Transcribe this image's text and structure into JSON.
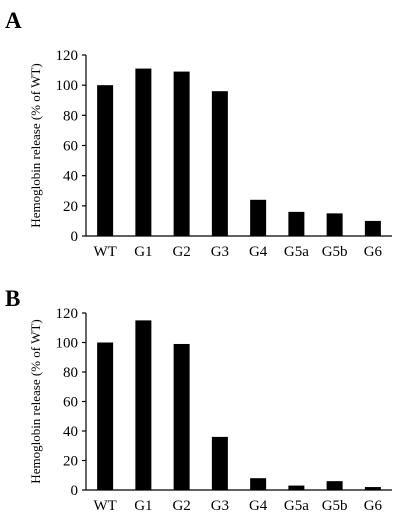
{
  "chart_data": [
    {
      "panel_label": "A",
      "type": "bar",
      "categories": [
        "WT",
        "G1",
        "G2",
        "G3",
        "G4",
        "G5a",
        "G5b",
        "G6"
      ],
      "values": [
        100,
        111,
        109,
        96,
        24,
        16,
        15,
        10
      ],
      "ylabel": "Hemoglobin release (% of WT)",
      "ylim": [
        0,
        120
      ],
      "yticks": [
        0,
        20,
        40,
        60,
        80,
        100,
        120
      ],
      "grid": false
    },
    {
      "panel_label": "B",
      "type": "bar",
      "categories": [
        "WT",
        "G1",
        "G2",
        "G3",
        "G4",
        "G5a",
        "G5b",
        "G6"
      ],
      "values": [
        100,
        115,
        99,
        36,
        8,
        3,
        6,
        2
      ],
      "ylabel": "Hemoglobin release (% of WT)",
      "ylim": [
        0,
        120
      ],
      "yticks": [
        0,
        20,
        40,
        60,
        80,
        100,
        120
      ],
      "grid": false
    }
  ],
  "colors": {
    "bar": "#000000",
    "axis": "#000000"
  }
}
